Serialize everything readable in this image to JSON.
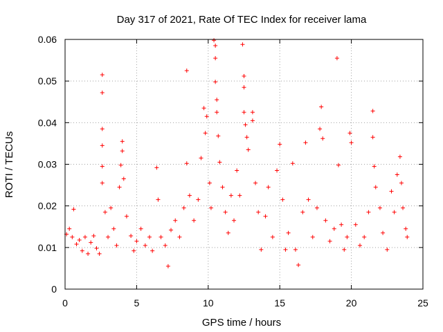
{
  "chart_data": {
    "type": "scatter",
    "title": "Day 317 of 2021, Rate Of TEC Index for receiver lama",
    "xlabel": "GPS time / hours",
    "ylabel": "ROTI / TECUs",
    "xlim": [
      0,
      25
    ],
    "ylim": [
      0,
      0.06
    ],
    "x_ticks": [
      0,
      5,
      10,
      15,
      20,
      25
    ],
    "y_ticks": [
      0,
      0.01,
      0.02,
      0.03,
      0.04,
      0.05,
      0.06
    ],
    "grid": true,
    "marker": "+",
    "series": [
      {
        "color": "#ff0000",
        "points": [
          [
            0.1,
            0.0132
          ],
          [
            0.3,
            0.0145
          ],
          [
            0.5,
            0.0125
          ],
          [
            0.6,
            0.0192
          ],
          [
            0.8,
            0.0108
          ],
          [
            1.0,
            0.0118
          ],
          [
            1.2,
            0.0092
          ],
          [
            1.4,
            0.0125
          ],
          [
            1.6,
            0.0085
          ],
          [
            1.8,
            0.0112
          ],
          [
            2.0,
            0.0128
          ],
          [
            2.2,
            0.0098
          ],
          [
            2.4,
            0.0085
          ],
          [
            2.6,
            0.0255
          ],
          [
            2.6,
            0.0515
          ],
          [
            2.6,
            0.0472
          ],
          [
            2.6,
            0.0385
          ],
          [
            2.6,
            0.0345
          ],
          [
            2.6,
            0.0295
          ],
          [
            2.8,
            0.0185
          ],
          [
            3.0,
            0.0125
          ],
          [
            3.2,
            0.0195
          ],
          [
            3.4,
            0.0145
          ],
          [
            3.6,
            0.0105
          ],
          [
            3.8,
            0.0245
          ],
          [
            3.9,
            0.0298
          ],
          [
            4.0,
            0.0355
          ],
          [
            4.0,
            0.0332
          ],
          [
            4.1,
            0.0265
          ],
          [
            4.3,
            0.0175
          ],
          [
            4.6,
            0.0128
          ],
          [
            4.8,
            0.0092
          ],
          [
            5.0,
            0.0115
          ],
          [
            5.3,
            0.0145
          ],
          [
            5.6,
            0.0105
          ],
          [
            5.9,
            0.0125
          ],
          [
            6.1,
            0.0092
          ],
          [
            6.4,
            0.0292
          ],
          [
            6.5,
            0.0215
          ],
          [
            6.7,
            0.0125
          ],
          [
            7.0,
            0.0105
          ],
          [
            7.2,
            0.0055
          ],
          [
            7.4,
            0.0142
          ],
          [
            7.7,
            0.0165
          ],
          [
            8.0,
            0.0125
          ],
          [
            8.3,
            0.0195
          ],
          [
            8.5,
            0.0525
          ],
          [
            8.5,
            0.0302
          ],
          [
            8.7,
            0.0225
          ],
          [
            9.0,
            0.0165
          ],
          [
            9.3,
            0.0215
          ],
          [
            9.5,
            0.0315
          ],
          [
            9.7,
            0.0435
          ],
          [
            9.8,
            0.0375
          ],
          [
            9.9,
            0.0415
          ],
          [
            10.1,
            0.0255
          ],
          [
            10.2,
            0.0195
          ],
          [
            10.4,
            0.0598
          ],
          [
            10.5,
            0.0585
          ],
          [
            10.5,
            0.0555
          ],
          [
            10.5,
            0.0498
          ],
          [
            10.6,
            0.0455
          ],
          [
            10.6,
            0.0425
          ],
          [
            10.7,
            0.0368
          ],
          [
            10.8,
            0.0305
          ],
          [
            11.0,
            0.0245
          ],
          [
            11.2,
            0.0185
          ],
          [
            11.4,
            0.0135
          ],
          [
            11.6,
            0.0225
          ],
          [
            11.8,
            0.0165
          ],
          [
            12.0,
            0.0285
          ],
          [
            12.2,
            0.0225
          ],
          [
            12.4,
            0.0588
          ],
          [
            12.5,
            0.0512
          ],
          [
            12.5,
            0.0485
          ],
          [
            12.5,
            0.0425
          ],
          [
            12.6,
            0.0395
          ],
          [
            12.7,
            0.0365
          ],
          [
            12.8,
            0.0335
          ],
          [
            13.1,
            0.0425
          ],
          [
            13.1,
            0.0405
          ],
          [
            13.3,
            0.0255
          ],
          [
            13.5,
            0.0185
          ],
          [
            13.7,
            0.0095
          ],
          [
            14.0,
            0.0175
          ],
          [
            14.2,
            0.0245
          ],
          [
            14.5,
            0.0125
          ],
          [
            14.8,
            0.0285
          ],
          [
            15.0,
            0.0348
          ],
          [
            15.2,
            0.0215
          ],
          [
            15.4,
            0.0095
          ],
          [
            15.6,
            0.0135
          ],
          [
            15.9,
            0.0302
          ],
          [
            16.1,
            0.0095
          ],
          [
            16.3,
            0.0058
          ],
          [
            16.6,
            0.0185
          ],
          [
            16.8,
            0.0352
          ],
          [
            17.0,
            0.0215
          ],
          [
            17.3,
            0.0125
          ],
          [
            17.6,
            0.0195
          ],
          [
            17.8,
            0.0385
          ],
          [
            17.9,
            0.0438
          ],
          [
            18.0,
            0.0362
          ],
          [
            18.2,
            0.0165
          ],
          [
            18.5,
            0.0115
          ],
          [
            18.8,
            0.0145
          ],
          [
            19.0,
            0.0555
          ],
          [
            19.1,
            0.0298
          ],
          [
            19.3,
            0.0155
          ],
          [
            19.5,
            0.0095
          ],
          [
            19.7,
            0.0125
          ],
          [
            19.9,
            0.0375
          ],
          [
            20.0,
            0.0352
          ],
          [
            20.3,
            0.0155
          ],
          [
            20.6,
            0.0105
          ],
          [
            20.9,
            0.0125
          ],
          [
            21.2,
            0.0185
          ],
          [
            21.5,
            0.0428
          ],
          [
            21.5,
            0.0365
          ],
          [
            21.6,
            0.0295
          ],
          [
            21.7,
            0.0245
          ],
          [
            22.0,
            0.0195
          ],
          [
            22.2,
            0.0135
          ],
          [
            22.5,
            0.0095
          ],
          [
            22.8,
            0.0235
          ],
          [
            23.0,
            0.0185
          ],
          [
            23.2,
            0.0275
          ],
          [
            23.4,
            0.0318
          ],
          [
            23.5,
            0.0255
          ],
          [
            23.6,
            0.0195
          ],
          [
            23.8,
            0.0145
          ],
          [
            23.9,
            0.0125
          ]
        ]
      }
    ]
  }
}
